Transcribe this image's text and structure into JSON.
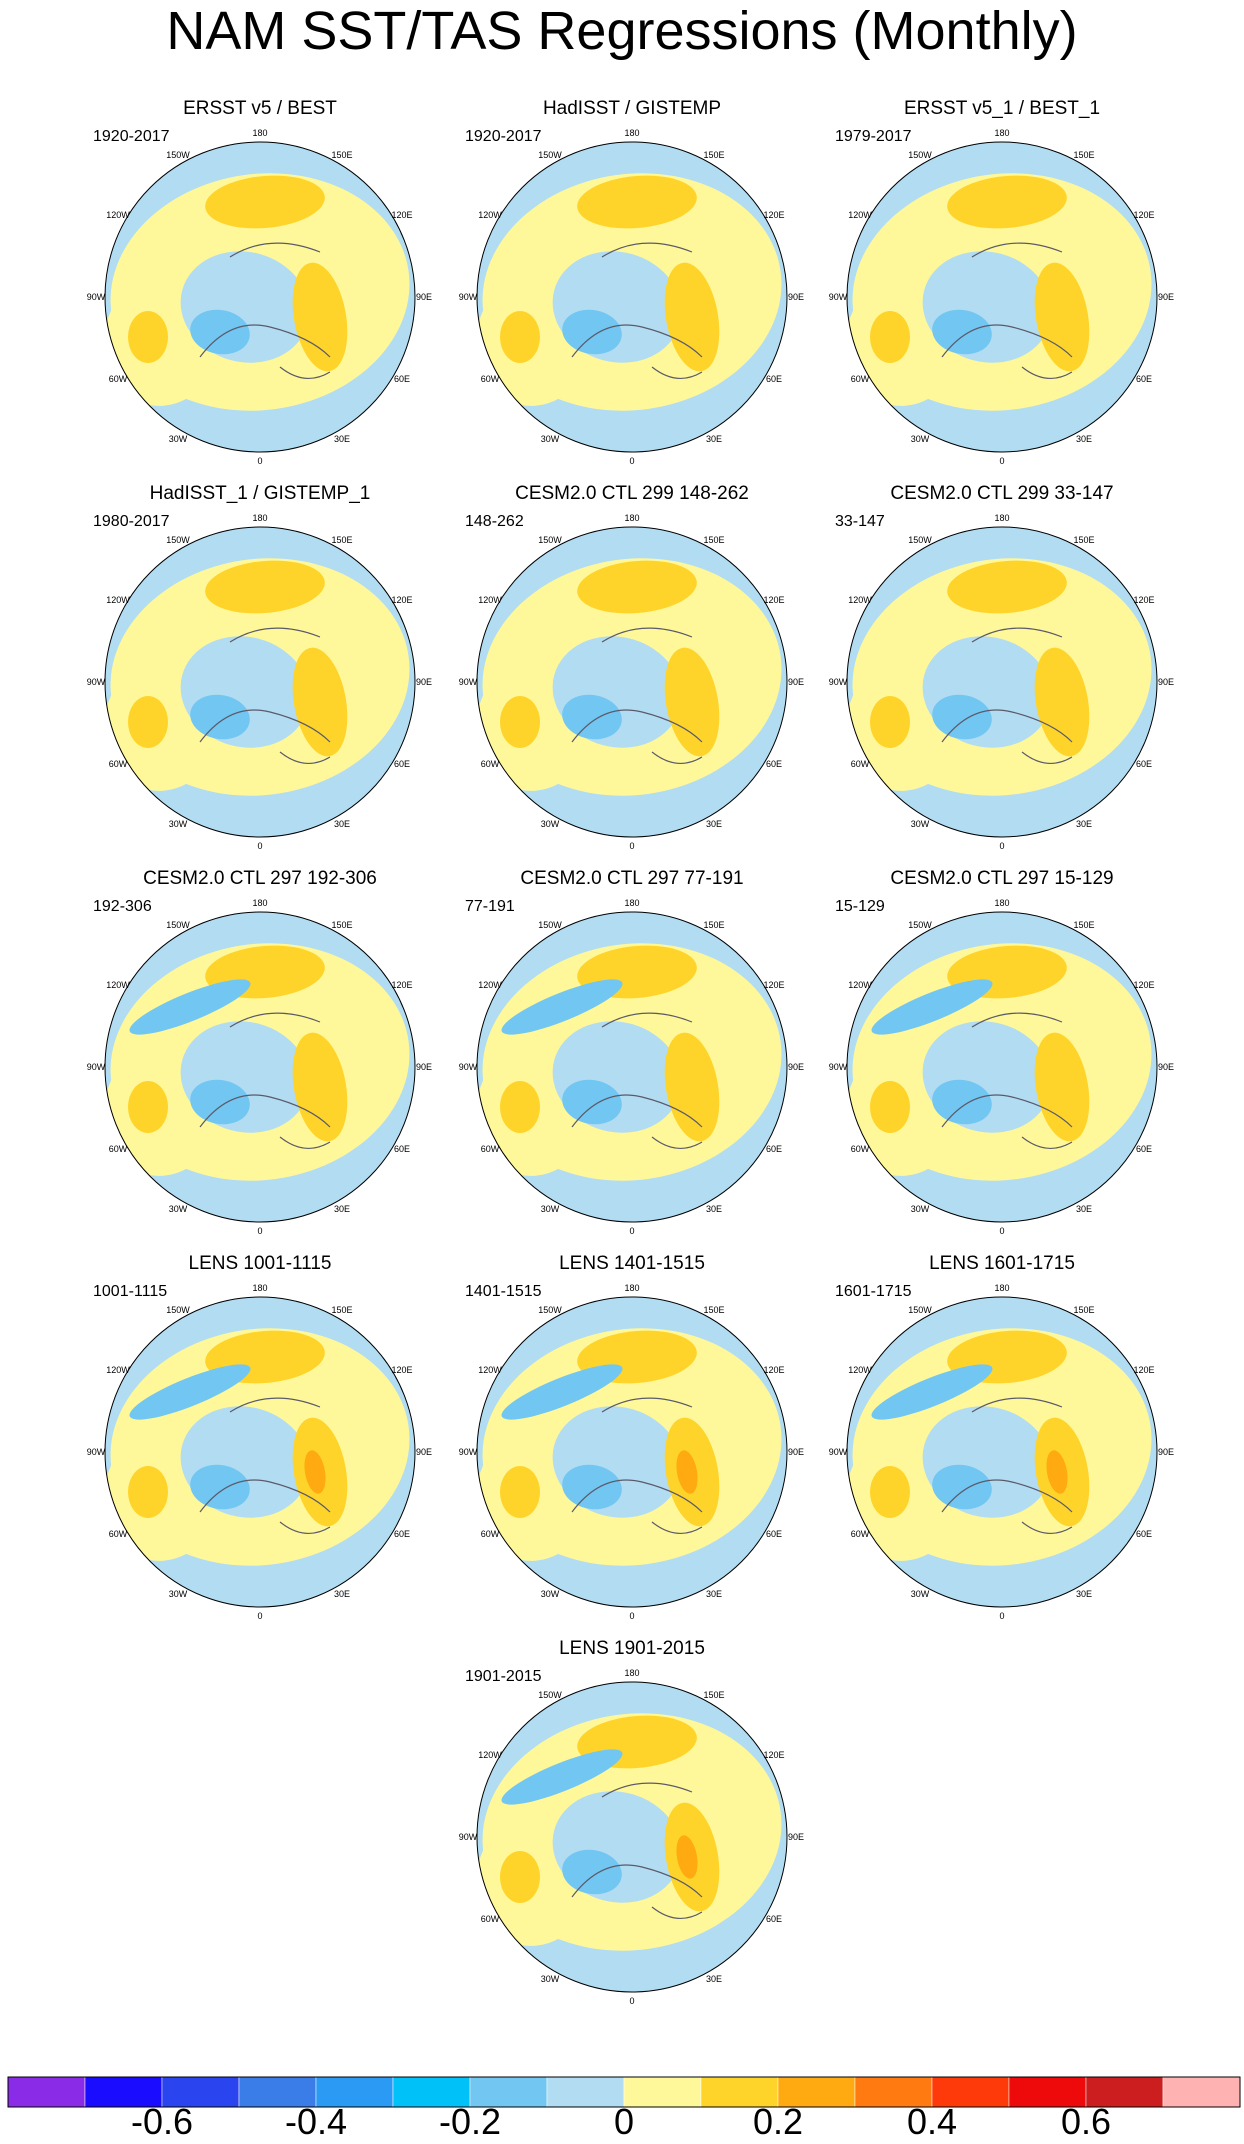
{
  "title": "NAM SST/TAS Regressions (Monthly)",
  "longitude_labels": [
    "180",
    "150E",
    "120E",
    "90E",
    "60E",
    "30E",
    "0",
    "30W",
    "60W",
    "90W",
    "120W",
    "150W"
  ],
  "panels": [
    {
      "title": "ERSST v5 / BEST",
      "period": "1920-2017"
    },
    {
      "title": "HadISST / GISTEMP",
      "period": "1920-2017"
    },
    {
      "title": "ERSST v5_1 / BEST_1",
      "period": "1979-2017"
    },
    {
      "title": "HadISST_1 / GISTEMP_1",
      "period": "1980-2017"
    },
    {
      "title": "CESM2.0 CTL 299 148-262",
      "period": "148-262"
    },
    {
      "title": "CESM2.0 CTL 299 33-147",
      "period": "33-147"
    },
    {
      "title": "CESM2.0 CTL 297 192-306",
      "period": "192-306"
    },
    {
      "title": "CESM2.0 CTL 297 77-191",
      "period": "77-191"
    },
    {
      "title": "CESM2.0 CTL 297 15-129",
      "period": "15-129"
    },
    {
      "title": "LENS 1001-1115",
      "period": "1001-1115"
    },
    {
      "title": "LENS 1401-1515",
      "period": "1401-1515"
    },
    {
      "title": "LENS 1601-1715",
      "period": "1601-1715"
    },
    {
      "title": "LENS 1901-2015",
      "period": "1901-2015"
    }
  ],
  "colorbar": {
    "colors": [
      "#8a2be8",
      "#1a0dff",
      "#2a44f0",
      "#3a7de8",
      "#2a9af5",
      "#00c2f8",
      "#72c6f2",
      "#b2dcf2",
      "#fff89a",
      "#ffd42a",
      "#ffaa10",
      "#ff7a10",
      "#ff3a0a",
      "#ee0a0a",
      "#cc1e1e",
      "#ffb2b2"
    ],
    "labels": [
      "-0.6",
      "-0.4",
      "-0.2",
      "0",
      "0.2",
      "0.4",
      "0.6"
    ]
  }
}
